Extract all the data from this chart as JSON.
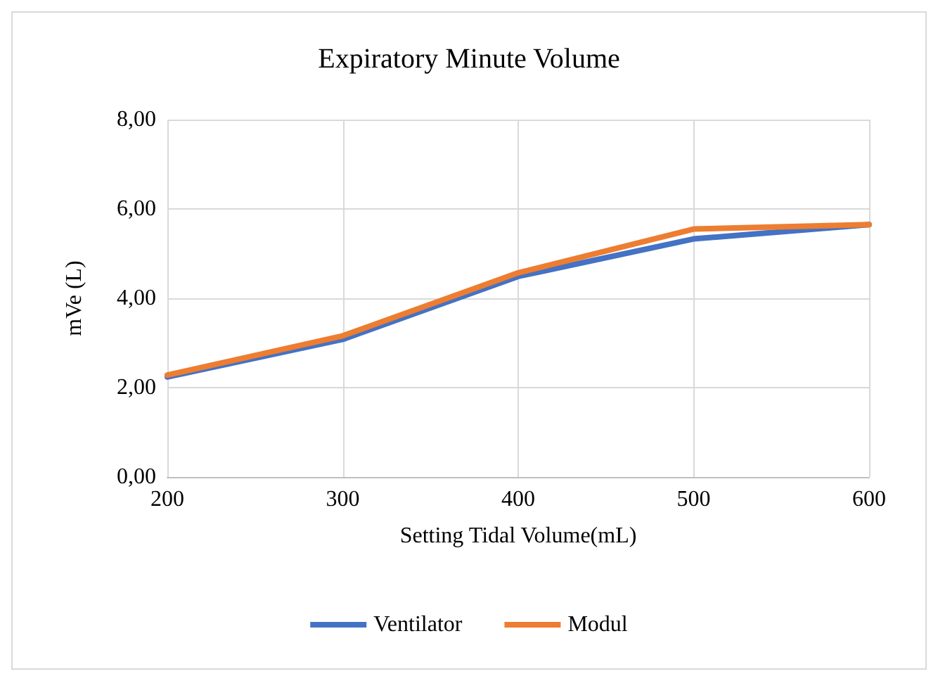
{
  "chart_data": {
    "type": "line",
    "title": "Expiratory Minute Volume",
    "xlabel": "Setting Tidal Volume(mL)",
    "ylabel": "mVe (L)",
    "x": [
      200,
      300,
      400,
      500,
      600
    ],
    "series": [
      {
        "name": "Ventilator",
        "color": "#4472c4",
        "values": [
          2.24,
          3.08,
          4.49,
          5.33,
          5.65
        ]
      },
      {
        "name": "Modul",
        "color": "#ed7d31",
        "values": [
          2.28,
          3.16,
          4.57,
          5.55,
          5.65
        ]
      }
    ],
    "xlim": [
      200,
      600
    ],
    "xticks": [
      200,
      300,
      400,
      500,
      600
    ],
    "ylim": [
      0,
      8
    ],
    "yticks": [
      {
        "value": 0,
        "label": "0,00"
      },
      {
        "value": 2,
        "label": "2,00"
      },
      {
        "value": 4,
        "label": "4,00"
      },
      {
        "value": 6,
        "label": "6,00"
      },
      {
        "value": 8,
        "label": "8,00"
      }
    ],
    "grid": true,
    "legend": "bottom",
    "marker": "none",
    "line_style": "solid"
  }
}
